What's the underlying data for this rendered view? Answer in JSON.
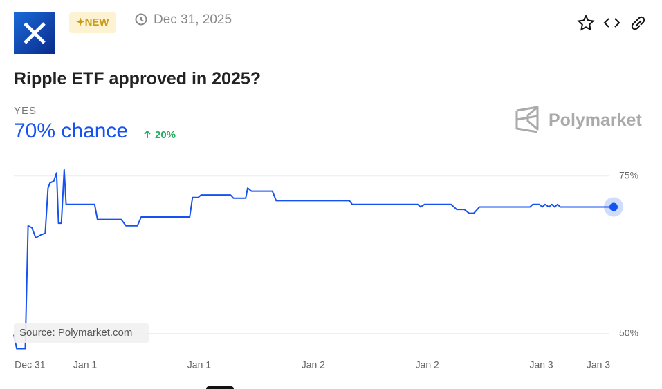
{
  "header": {
    "badge": "NEW",
    "date": "Dec 31, 2025",
    "title": "Ripple ETF approved in 2025?",
    "outcome": "YES",
    "chance": "70% chance",
    "change": "20%",
    "brand": "Polymarket"
  },
  "chart_data": {
    "type": "line",
    "color": "#1652f0",
    "source": "Source: Polymarket.com",
    "x": [
      0,
      0.3,
      1.2,
      1.5,
      1.9,
      2.3,
      2.9,
      3.3,
      3.6,
      3.8,
      4.2,
      4.5,
      4.7,
      5.0,
      5.3,
      5.5,
      8.5,
      8.8,
      11.3,
      11.8,
      13.0,
      13.4,
      18.5,
      18.8,
      19.4,
      19.7,
      22.8,
      23.1,
      24.4,
      24.6,
      25.0,
      27.2,
      27.6,
      35.3,
      35.6,
      42.5,
      42.8,
      43.2,
      46.0,
      46.6,
      47.4,
      47.9,
      48.4,
      49.0,
      54.3,
      54.6,
      55.3,
      55.6,
      55.9,
      56.3,
      56.6,
      56.9,
      57.2,
      57.5,
      63.1
    ],
    "values": [
      49.8,
      47.6,
      47.6,
      67.1,
      66.8,
      65.2,
      65.7,
      65.9,
      73.1,
      73.9,
      74.2,
      75.5,
      67.5,
      67.5,
      76.0,
      70.5,
      70.5,
      68.1,
      68.1,
      67.1,
      67.1,
      68.5,
      68.5,
      71.6,
      71.6,
      72.0,
      72.0,
      71.5,
      71.5,
      73.1,
      72.6,
      72.6,
      71.1,
      71.1,
      70.5,
      70.5,
      70.1,
      70.5,
      70.5,
      69.7,
      69.7,
      69.1,
      69.1,
      70.1,
      70.1,
      70.5,
      70.5,
      70.1,
      70.5,
      70.1,
      70.5,
      70.1,
      70.5,
      70.1,
      70.1
    ],
    "xlim": [
      0,
      63.1
    ],
    "xticks": [
      {
        "value": 1.7,
        "label": "Dec 31"
      },
      {
        "value": 7.5,
        "label": "Jan 1"
      },
      {
        "value": 19.5,
        "label": "Jan 1"
      },
      {
        "value": 31.5,
        "label": "Jan 2"
      },
      {
        "value": 43.5,
        "label": "Jan 2"
      },
      {
        "value": 55.5,
        "label": "Jan 3"
      },
      {
        "value": 61.5,
        "label": "Jan 3"
      }
    ],
    "ylim": [
      47,
      77.5
    ],
    "yticks": [
      {
        "value": 50,
        "label": "50%"
      },
      {
        "value": 75,
        "label": "75%"
      }
    ],
    "grid": true
  }
}
